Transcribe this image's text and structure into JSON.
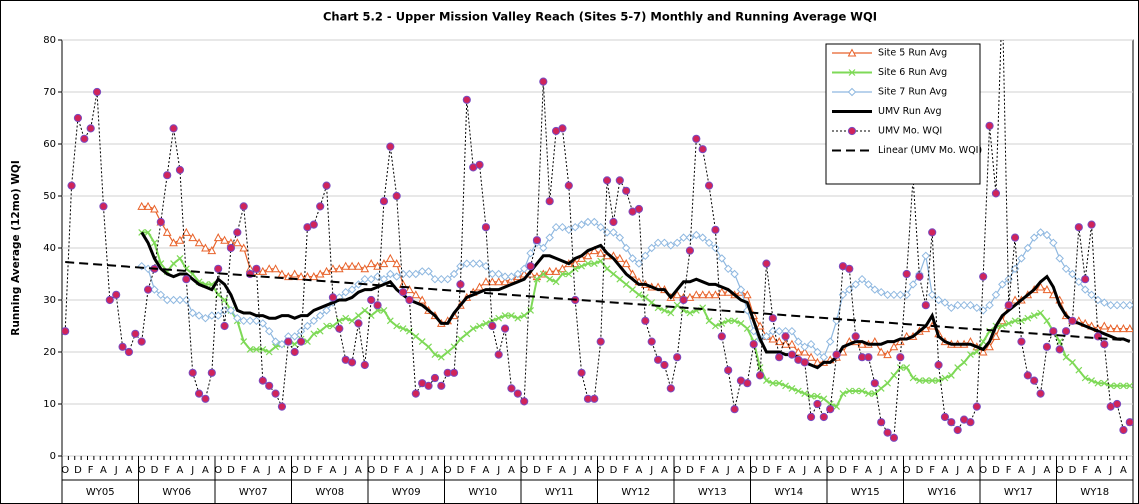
{
  "chart_data": {
    "type": "line",
    "title": "Chart 5.2 - Upper Mission Valley Reach (Sites 5-7) Monthly and Running Average WQI",
    "y_label": "Running Average (12mo) WQI",
    "categories": [
      "O",
      null,
      "D",
      null,
      "F",
      null,
      "A",
      null,
      "J",
      null,
      "A",
      null,
      "O",
      null,
      "D",
      null,
      "F",
      null,
      "A",
      null,
      "J",
      null,
      "A",
      null,
      "O",
      null,
      "D",
      null,
      "F",
      null,
      "A",
      null,
      "J",
      null,
      "A",
      null,
      "O",
      null,
      "D",
      null,
      "F",
      null,
      "A",
      null,
      "J",
      null,
      "A",
      null,
      "O",
      null,
      "D",
      null,
      "F",
      null,
      "A",
      null,
      "J",
      null,
      "A",
      null,
      "O",
      null,
      "D",
      null,
      "F",
      null,
      "A",
      null,
      "J",
      null,
      "A",
      null,
      "O",
      null,
      "D",
      null,
      "F",
      null,
      "A",
      null,
      "J",
      null,
      "A",
      null,
      "O",
      null,
      "D",
      null,
      "F",
      null,
      "A",
      null,
      "J",
      null,
      "A",
      null,
      "O",
      null,
      "D",
      null,
      "F",
      null,
      "A",
      null,
      "J",
      null,
      "A",
      null,
      "O",
      null,
      "D",
      null,
      "F",
      null,
      "A",
      null,
      "J",
      null,
      "A",
      null,
      "O",
      null,
      "D",
      null,
      "F",
      null,
      "A",
      null,
      "J",
      null,
      "A",
      null,
      "O",
      null,
      "D",
      null,
      "F",
      null,
      "A",
      null,
      "J",
      null,
      "A",
      null,
      "O",
      null,
      "D",
      null,
      "F",
      null,
      "A",
      null,
      "J",
      null,
      "A",
      null,
      "O",
      null,
      "D",
      null,
      "F",
      null,
      "A",
      null,
      "J",
      null,
      "A",
      null
    ],
    "groups": [
      "WY05",
      "WY06",
      "WY07",
      "WY08",
      "WY09",
      "WY10",
      "WY11",
      "WY12",
      "WY13",
      "WY14",
      "WY15",
      "WY16",
      "WY17",
      "WY18"
    ],
    "ylim": [
      0,
      80
    ],
    "yticks": [
      0,
      10,
      20,
      30,
      40,
      50,
      60,
      70,
      80
    ],
    "grid": true,
    "legend": "upper right",
    "series": [
      {
        "name": "Site 5 Run Avg",
        "color": "#e8622a",
        "marker": "triangle",
        "width": 1.2,
        "values": [
          null,
          null,
          null,
          null,
          null,
          null,
          null,
          null,
          null,
          null,
          null,
          null,
          48,
          48,
          47.5,
          45,
          43,
          41,
          41.5,
          43,
          42,
          41,
          40,
          39.5,
          42,
          41.5,
          41,
          41,
          40,
          36,
          35.5,
          35.5,
          36,
          36,
          35,
          34.5,
          35,
          34.5,
          34.5,
          34.5,
          35,
          35.5,
          36,
          36,
          36.5,
          36.5,
          36.5,
          36,
          37,
          36.5,
          37,
          38,
          37,
          33,
          32,
          31,
          30,
          28,
          27,
          25.5,
          26,
          27,
          29,
          30.5,
          31.5,
          32.5,
          33.5,
          33.5,
          33.5,
          33.5,
          34,
          34.5,
          35,
          35,
          34.5,
          35,
          35.5,
          35.5,
          36,
          37,
          37,
          38,
          38.5,
          39.5,
          39,
          38.5,
          38.5,
          38,
          37,
          35,
          33.5,
          33,
          32.5,
          32.5,
          32,
          30.5,
          31,
          30.5,
          30.5,
          31,
          31,
          31,
          31,
          31.5,
          31.5,
          31,
          31.5,
          31,
          27,
          25,
          23,
          22.5,
          22,
          21.5,
          21.5,
          20,
          20,
          19,
          18,
          18,
          18.5,
          19,
          20,
          22,
          22,
          21.5,
          21.5,
          22,
          20,
          19.5,
          21,
          22,
          23,
          23,
          24,
          24.5,
          25,
          23.5,
          22,
          21.5,
          21.5,
          21.5,
          22,
          21,
          20,
          21,
          23,
          26,
          29,
          30,
          30,
          31,
          32,
          32.5,
          32,
          31,
          30,
          27,
          26,
          26,
          25.5,
          25,
          24.5,
          25,
          24.5,
          24.5,
          24.5,
          24.5
        ]
      },
      {
        "name": "Site 6 Run Avg",
        "color": "#7ed957",
        "marker": "x",
        "width": 2,
        "values": [
          null,
          null,
          null,
          null,
          null,
          null,
          null,
          null,
          null,
          null,
          null,
          null,
          43,
          43,
          41,
          37,
          35.5,
          37,
          38,
          36,
          35,
          33.5,
          33,
          33,
          31,
          30,
          28,
          26,
          22,
          20.5,
          20.5,
          20.5,
          20,
          21,
          21.5,
          22,
          21.5,
          22.5,
          22,
          23.5,
          24,
          25,
          25,
          26,
          26.5,
          26,
          27,
          28,
          27,
          28,
          28,
          26,
          25,
          24.5,
          24,
          23,
          22,
          21,
          19.5,
          19,
          20,
          21,
          22.5,
          23.5,
          24.5,
          25,
          25.5,
          26,
          26.5,
          27,
          27,
          26.5,
          27,
          28,
          34,
          35,
          34,
          33.5,
          35,
          35,
          36,
          36.5,
          37,
          37,
          37.5,
          36,
          35,
          34,
          33,
          32,
          31,
          30.5,
          29.5,
          28.5,
          28,
          27.5,
          29,
          28,
          27.5,
          28,
          28.5,
          26,
          25,
          25.5,
          26,
          26,
          25.5,
          24.5,
          22,
          17,
          14.5,
          14,
          14,
          13.5,
          13,
          12.5,
          12,
          11.5,
          11.5,
          11,
          10,
          9.5,
          12,
          12.5,
          12.5,
          12.5,
          12,
          12,
          13,
          14,
          15.5,
          17,
          17,
          15,
          14.5,
          14.5,
          14.5,
          14.5,
          15,
          15.5,
          17,
          18,
          19.5,
          20,
          22,
          24,
          25,
          25,
          25.5,
          26,
          26,
          26.5,
          27,
          27.5,
          26,
          24,
          22,
          19,
          18,
          16.5,
          15,
          14.5,
          14,
          14,
          13.5,
          13.5,
          13.5,
          13.5
        ]
      },
      {
        "name": "Site 7 Run Avg",
        "color": "#8fb8e0",
        "marker": "diamond",
        "width": 1.2,
        "values": [
          null,
          null,
          null,
          null,
          null,
          null,
          null,
          null,
          null,
          null,
          null,
          null,
          36.5,
          36,
          32,
          31,
          30,
          30,
          30,
          30,
          27.5,
          27,
          26.5,
          27,
          27,
          28,
          28,
          26.5,
          26,
          26,
          26,
          25.5,
          24,
          22,
          21.5,
          23,
          23,
          24,
          25,
          26,
          27,
          28,
          29.5,
          30.5,
          31.5,
          32,
          33,
          34,
          34,
          34.5,
          34,
          35,
          34.5,
          35,
          35,
          35,
          35.5,
          35.5,
          34,
          34,
          34,
          35,
          36.5,
          37,
          37,
          37,
          36.5,
          35,
          35,
          34.5,
          34.5,
          35,
          36,
          39,
          41,
          40,
          42,
          44,
          44,
          43.5,
          44,
          44.5,
          45,
          45,
          44,
          43,
          43,
          42,
          40,
          38,
          37,
          38.5,
          40,
          41,
          41,
          40.5,
          41,
          42,
          42,
          42.5,
          42,
          41,
          40,
          38,
          36,
          35,
          32,
          28,
          24,
          22.5,
          23,
          24,
          24,
          24,
          24,
          22,
          21,
          21.5,
          20,
          19,
          22,
          26,
          31,
          32,
          33,
          34,
          33,
          32,
          31.5,
          31,
          31,
          31,
          31,
          33,
          35,
          38.5,
          31,
          30,
          29.5,
          28.5,
          29,
          29,
          29,
          28.5,
          28,
          29,
          31,
          33,
          34,
          36,
          38,
          40,
          42,
          43,
          42.5,
          41,
          38,
          36,
          35,
          33.5,
          32,
          31,
          30,
          29.5,
          29,
          29,
          29,
          29
        ]
      },
      {
        "name": "UMV Run Avg",
        "color": "#000000",
        "marker": "none",
        "width": 3,
        "values": [
          null,
          null,
          null,
          null,
          null,
          null,
          null,
          null,
          null,
          null,
          null,
          null,
          43,
          41,
          38,
          36,
          35,
          34.5,
          35,
          35,
          34,
          33,
          32.5,
          32,
          34,
          33,
          31,
          28,
          27.5,
          27.5,
          27,
          27,
          26.5,
          26.5,
          27,
          27,
          26.5,
          27,
          27,
          28,
          28.5,
          29,
          29.5,
          30,
          30,
          30.5,
          31.5,
          32,
          32,
          32.5,
          33,
          33.5,
          32,
          31,
          30,
          29.5,
          29,
          28,
          27,
          25.5,
          25.5,
          27.5,
          29,
          30.5,
          31,
          31.5,
          32,
          32,
          32,
          32.5,
          33,
          33.5,
          34,
          35.5,
          37,
          38.5,
          38.5,
          38,
          37.5,
          37,
          38,
          38.5,
          39.5,
          40,
          40.5,
          39,
          38,
          36.5,
          35,
          34,
          33,
          33,
          32.5,
          32,
          32,
          30.5,
          32,
          33.5,
          33.5,
          34,
          33.5,
          33,
          33,
          32.5,
          32,
          31,
          30,
          29.5,
          26,
          22.5,
          20,
          20,
          20,
          19.5,
          19.5,
          19,
          18,
          17.5,
          17,
          18,
          18,
          19,
          21,
          21.5,
          22,
          22,
          21.5,
          21.5,
          21.5,
          22,
          22,
          22.5,
          22.5,
          23,
          24,
          25,
          27,
          23,
          22,
          21.5,
          21.5,
          21.5,
          21.5,
          21,
          20.5,
          22,
          25,
          27,
          28,
          29,
          30,
          31,
          32,
          33.5,
          34.5,
          32.5,
          29,
          27,
          26,
          25.5,
          25,
          24.5,
          24,
          23.5,
          23,
          22.5,
          22.5,
          22
        ]
      },
      {
        "name": "UMV Mo. WQI",
        "color": "#000000",
        "marker": "circle",
        "marker_color": "#d0245a",
        "dash": "dotted",
        "width": 1,
        "values": [
          24,
          52,
          65,
          61,
          63,
          70,
          48,
          30,
          31,
          21,
          20,
          23.5,
          22,
          32,
          36,
          45,
          54,
          63,
          55,
          34,
          16,
          12,
          11,
          16,
          36,
          25,
          40,
          43,
          48,
          35,
          36,
          14.5,
          13.5,
          12,
          9.5,
          22,
          20,
          22,
          44,
          44.5,
          48,
          52,
          30.5,
          24.5,
          18.5,
          18,
          25.5,
          17.5,
          30,
          29,
          49,
          59.5,
          50,
          31.5,
          30,
          12,
          14,
          13.5,
          15,
          13.5,
          16,
          16,
          33,
          68.5,
          55.5,
          56,
          44,
          25,
          19.5,
          24.5,
          13,
          12,
          10.5,
          36.5,
          41.5,
          72,
          49,
          62.5,
          63,
          52,
          30,
          16,
          11,
          11,
          22,
          53,
          45,
          53,
          51,
          47,
          47.5,
          26,
          22,
          18.5,
          17.5,
          13,
          19,
          30,
          39.5,
          61,
          59,
          52,
          43.5,
          23,
          16.5,
          9,
          14.5,
          14,
          21.5,
          15.5,
          37,
          26.5,
          19,
          23,
          19.5,
          18.5,
          18,
          7.5,
          10,
          7.5,
          9,
          19.5,
          36.5,
          36,
          23,
          19,
          19,
          14,
          6.5,
          4.5,
          3.5,
          19,
          35,
          53.5,
          34.5,
          29,
          43,
          17.5,
          7.5,
          6.5,
          5,
          7,
          6.5,
          9.5,
          34.5,
          63.5,
          50.5,
          88,
          29,
          42,
          22,
          15.5,
          14.5,
          12,
          21,
          24,
          20.5,
          24,
          26,
          44,
          34,
          44.5,
          23,
          21.5,
          9.5,
          10,
          5,
          6.5
        ]
      }
    ],
    "trendline": {
      "name": "Linear (UMV Mo. WQI)",
      "color": "#000000",
      "dash": "dashed",
      "start": 37.3,
      "end": 22.2
    }
  }
}
